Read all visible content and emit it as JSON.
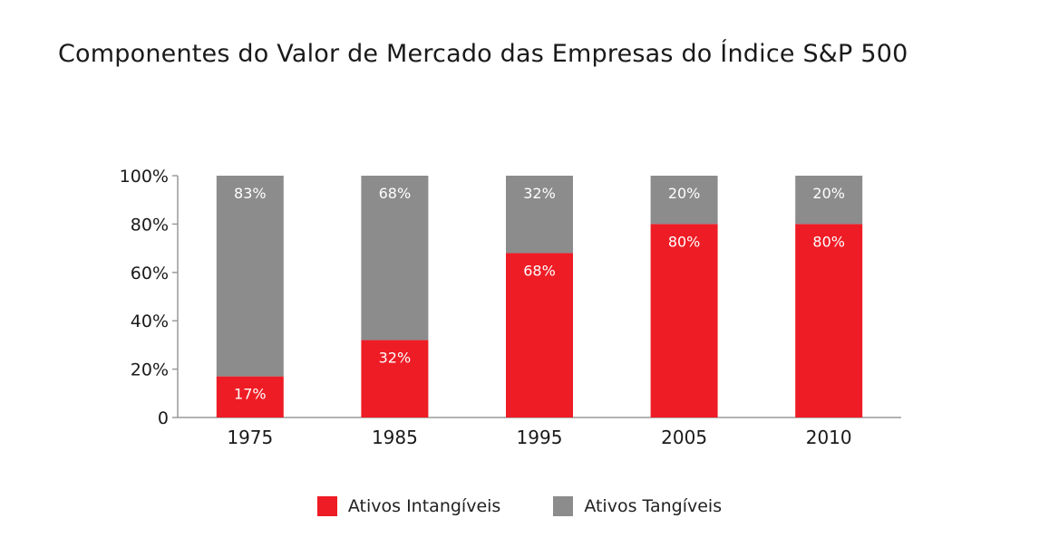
{
  "chart_data": {
    "type": "bar",
    "stacked": true,
    "title": "Componentes do Valor de Mercado das Empresas do Índice S&P 500",
    "xlabel": "",
    "ylabel": "",
    "ylim": [
      0,
      100
    ],
    "y_ticks": [
      "0",
      "20%",
      "40%",
      "60%",
      "80%",
      "100%"
    ],
    "categories": [
      "1975",
      "1985",
      "1995",
      "2005",
      "2010"
    ],
    "series": [
      {
        "name": "Ativos Intangíveis",
        "color": "#ee1c25",
        "values": [
          17,
          32,
          68,
          80,
          80
        ],
        "labels": [
          "17%",
          "32%",
          "68%",
          "80%",
          "80%"
        ]
      },
      {
        "name": "Ativos Tangíveis",
        "color": "#8c8c8c",
        "values": [
          83,
          68,
          32,
          20,
          20
        ],
        "labels": [
          "83%",
          "68%",
          "32%",
          "20%",
          "20%"
        ]
      }
    ],
    "grid": false,
    "legend_position": "bottom"
  }
}
